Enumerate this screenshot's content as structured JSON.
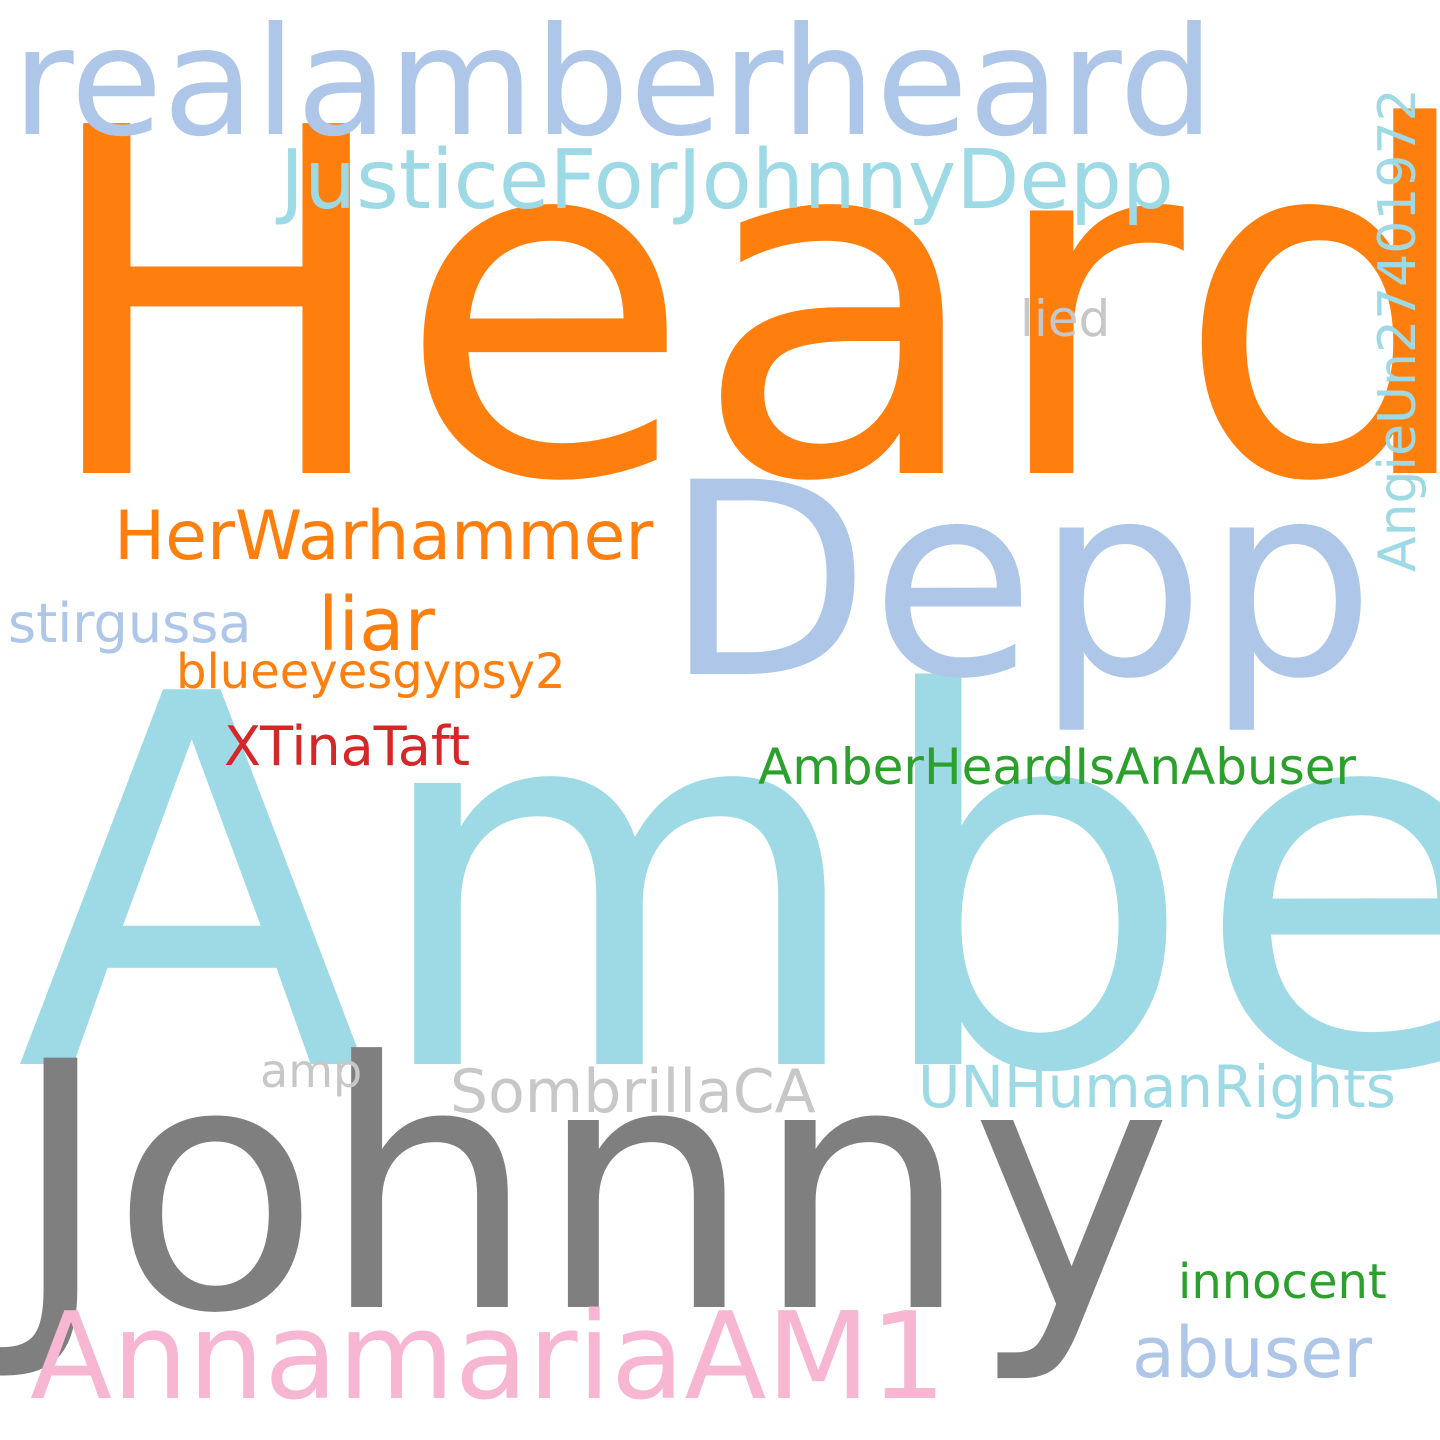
{
  "words": [
    {
      "id": "heard",
      "text": "Heard",
      "color": "#ff7f0e"
    },
    {
      "id": "amber",
      "text": "Amber",
      "color": "#9edae5"
    },
    {
      "id": "johnny",
      "text": "Johnny",
      "color": "#7f7f7f"
    },
    {
      "id": "depp",
      "text": "Depp",
      "color": "#aec7e8"
    },
    {
      "id": "realamberheard",
      "text": "realamberheard",
      "color": "#aec7e8"
    },
    {
      "id": "justiceforjohnnydepp",
      "text": "JusticeForJohnnyDepp",
      "color": "#9edae5"
    },
    {
      "id": "annamariaam1",
      "text": "AnnamariaAM1",
      "color": "#f7b6d2"
    },
    {
      "id": "angieun27401972",
      "text": "AngieUn27401972",
      "color": "#9edae5"
    },
    {
      "id": "herwarhammer",
      "text": "HerWarhammer",
      "color": "#ff7f0e"
    },
    {
      "id": "liar",
      "text": "liar",
      "color": "#ff7f0e"
    },
    {
      "id": "stirgussa",
      "text": "stirgussa",
      "color": "#aec7e8"
    },
    {
      "id": "blueeyesgypsy2",
      "text": "blueeyesgypsy2",
      "color": "#ff7f0e"
    },
    {
      "id": "xtinataft",
      "text": "XTinaTaft",
      "color": "#d62728"
    },
    {
      "id": "amberheardisanabuser",
      "text": "AmberHeardIsAnAbuser",
      "color": "#2ca02c"
    },
    {
      "id": "lied",
      "text": "lied",
      "color": "#c7c7c7"
    },
    {
      "id": "amp",
      "text": "amp",
      "color": "#c7c7c7"
    },
    {
      "id": "sombrillaca",
      "text": "SombrillaCA",
      "color": "#c7c7c7"
    },
    {
      "id": "unhumanrights",
      "text": "UNHumanRights",
      "color": "#9edae5"
    },
    {
      "id": "innocent",
      "text": "innocent",
      "color": "#2ca02c"
    },
    {
      "id": "abuser",
      "text": "abuser",
      "color": "#aec7e8"
    }
  ]
}
